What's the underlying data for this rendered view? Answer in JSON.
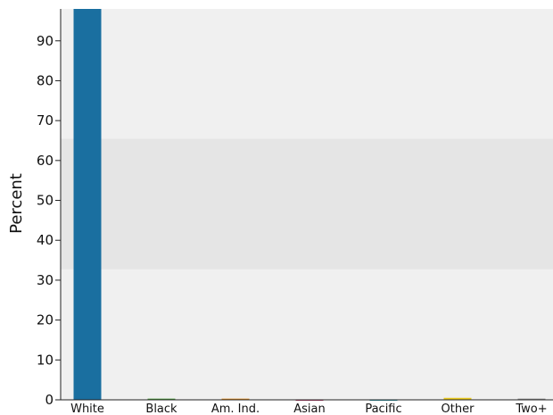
{
  "chart_data": {
    "type": "bar",
    "title": "",
    "xlabel": "",
    "ylabel": "Percent",
    "ylim": [
      0,
      98
    ],
    "yticks": [
      0,
      10,
      20,
      30,
      40,
      50,
      60,
      70,
      80,
      90
    ],
    "categories": [
      "White",
      "Black",
      "Am. Ind.",
      "Asian",
      "Pacific",
      "Other",
      "Two+"
    ],
    "values": [
      98.5,
      0.3,
      0.3,
      0.1,
      0.1,
      0.5,
      0.3
    ],
    "colors": [
      "#1a6fa0",
      "#4a9a3a",
      "#e08a20",
      "#c03a6a",
      "#2aa0b0",
      "#e8c820",
      "#8a8a8a"
    ],
    "bands": [
      {
        "from": 0,
        "to": 32.7,
        "color": "#f0f0f0"
      },
      {
        "from": 32.7,
        "to": 65.5,
        "color": "#e5e5e5"
      },
      {
        "from": 65.5,
        "to": 98,
        "color": "#f0f0f0"
      }
    ],
    "grid": false,
    "legend": "none"
  }
}
